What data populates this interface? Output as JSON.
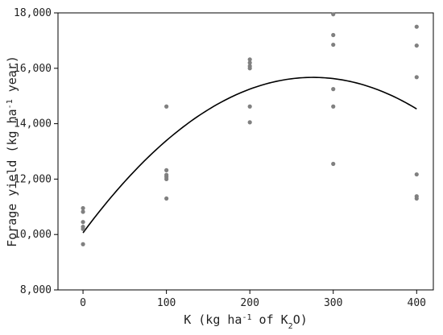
{
  "chart_data": {
    "type": "scatter",
    "title": "",
    "xlabel": {
      "parts": [
        {
          "text": "K (kg ha"
        },
        {
          "text": "-1",
          "sup": true
        },
        {
          "text": " of K"
        },
        {
          "text": "2",
          "sub": true
        },
        {
          "text": "O)"
        }
      ]
    },
    "ylabel": {
      "parts": [
        {
          "text": "Forage yield (kg ha"
        },
        {
          "text": "-1",
          "sup": true
        },
        {
          "text": " year)"
        }
      ]
    },
    "xlim": [
      -30,
      420
    ],
    "ylim": [
      8000,
      18000
    ],
    "xticks": [
      0,
      100,
      200,
      300,
      400
    ],
    "xtick_labels": [
      "0",
      "100",
      "200",
      "300",
      "400"
    ],
    "yticks": [
      8000,
      10000,
      12000,
      14000,
      16000,
      18000
    ],
    "ytick_labels": [
      "8,000",
      "10,000",
      "12,000",
      "14,000",
      "16,000",
      "18,000"
    ],
    "grid": false,
    "points": [
      {
        "x": 0,
        "y": 10950
      },
      {
        "x": 0,
        "y": 10820
      },
      {
        "x": 0,
        "y": 10450
      },
      {
        "x": 0,
        "y": 10280
      },
      {
        "x": 0,
        "y": 10200
      },
      {
        "x": 0,
        "y": 9650
      },
      {
        "x": 100,
        "y": 14620
      },
      {
        "x": 100,
        "y": 12320
      },
      {
        "x": 100,
        "y": 12150
      },
      {
        "x": 100,
        "y": 12080
      },
      {
        "x": 100,
        "y": 12000
      },
      {
        "x": 100,
        "y": 11300
      },
      {
        "x": 200,
        "y": 16320
      },
      {
        "x": 200,
        "y": 16200
      },
      {
        "x": 200,
        "y": 16080
      },
      {
        "x": 200,
        "y": 16000
      },
      {
        "x": 200,
        "y": 14620
      },
      {
        "x": 200,
        "y": 14050
      },
      {
        "x": 300,
        "y": 17950
      },
      {
        "x": 300,
        "y": 17200
      },
      {
        "x": 300,
        "y": 16850
      },
      {
        "x": 300,
        "y": 15250
      },
      {
        "x": 300,
        "y": 14620
      },
      {
        "x": 300,
        "y": 12550
      },
      {
        "x": 400,
        "y": 17500
      },
      {
        "x": 400,
        "y": 16820
      },
      {
        "x": 400,
        "y": 15680
      },
      {
        "x": 400,
        "y": 12170
      },
      {
        "x": 400,
        "y": 11380
      },
      {
        "x": 400,
        "y": 11300
      }
    ],
    "fit_curve": {
      "type": "quadratic",
      "x_range": [
        0,
        400
      ],
      "coefficients": {
        "a": -0.0738,
        "b": 40.7,
        "c": 10060
      }
    },
    "colors": {
      "points": "#808080",
      "curve": "#000000",
      "axis": "#000000"
    }
  }
}
